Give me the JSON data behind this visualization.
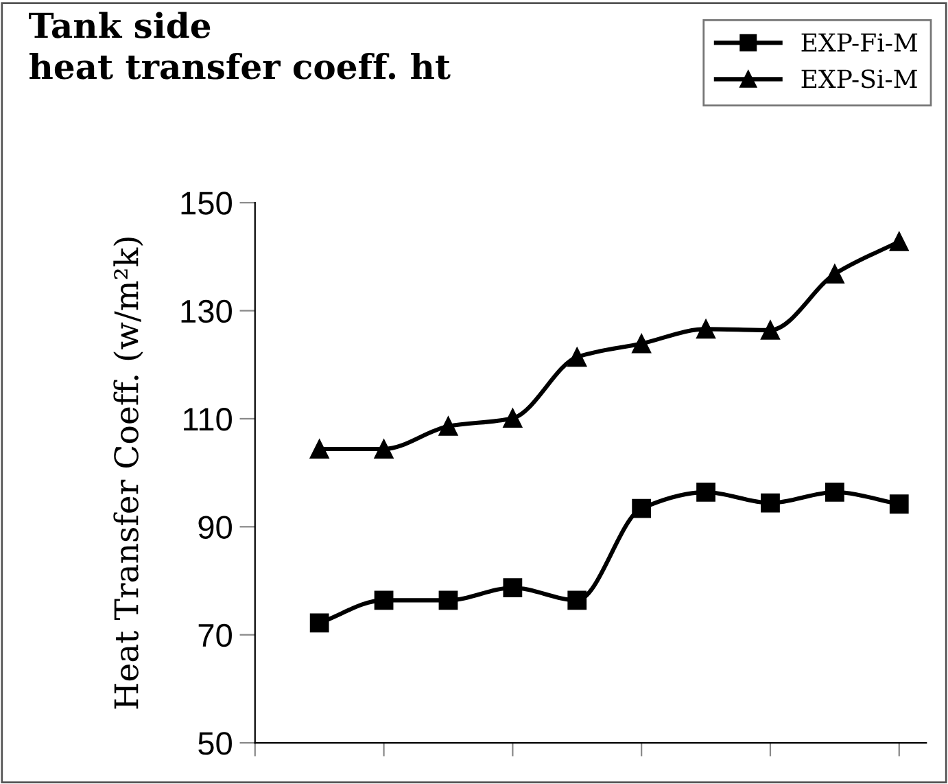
{
  "chart_data": {
    "type": "line",
    "title": "Tank side\nheat transfer coeff. ht",
    "ylabel": "Heat Transfer Coeff. (w/m²k)",
    "categories": [
      null,
      null,
      null,
      null,
      null,
      null,
      null,
      null,
      null,
      null
    ],
    "series": [
      {
        "name": "EXP-Fi-M",
        "color": "#000000",
        "marker": "square",
        "values": [
          72.2,
          76.4,
          76.4,
          78.7,
          76.4,
          93.4,
          96.4,
          94.4,
          96.4,
          94.2
        ]
      },
      {
        "name": "EXP-Si-M",
        "color": "#000000",
        "marker": "triangle",
        "values": [
          104.4,
          104.4,
          108.6,
          110.1,
          121.4,
          123.9,
          126.6,
          126.4,
          136.8,
          142.8
        ]
      }
    ],
    "ylim": [
      50,
      150
    ],
    "yticks": [
      50,
      70,
      90,
      110,
      130,
      150
    ],
    "grid": false,
    "legend": "top right",
    "line_style": "solid"
  }
}
